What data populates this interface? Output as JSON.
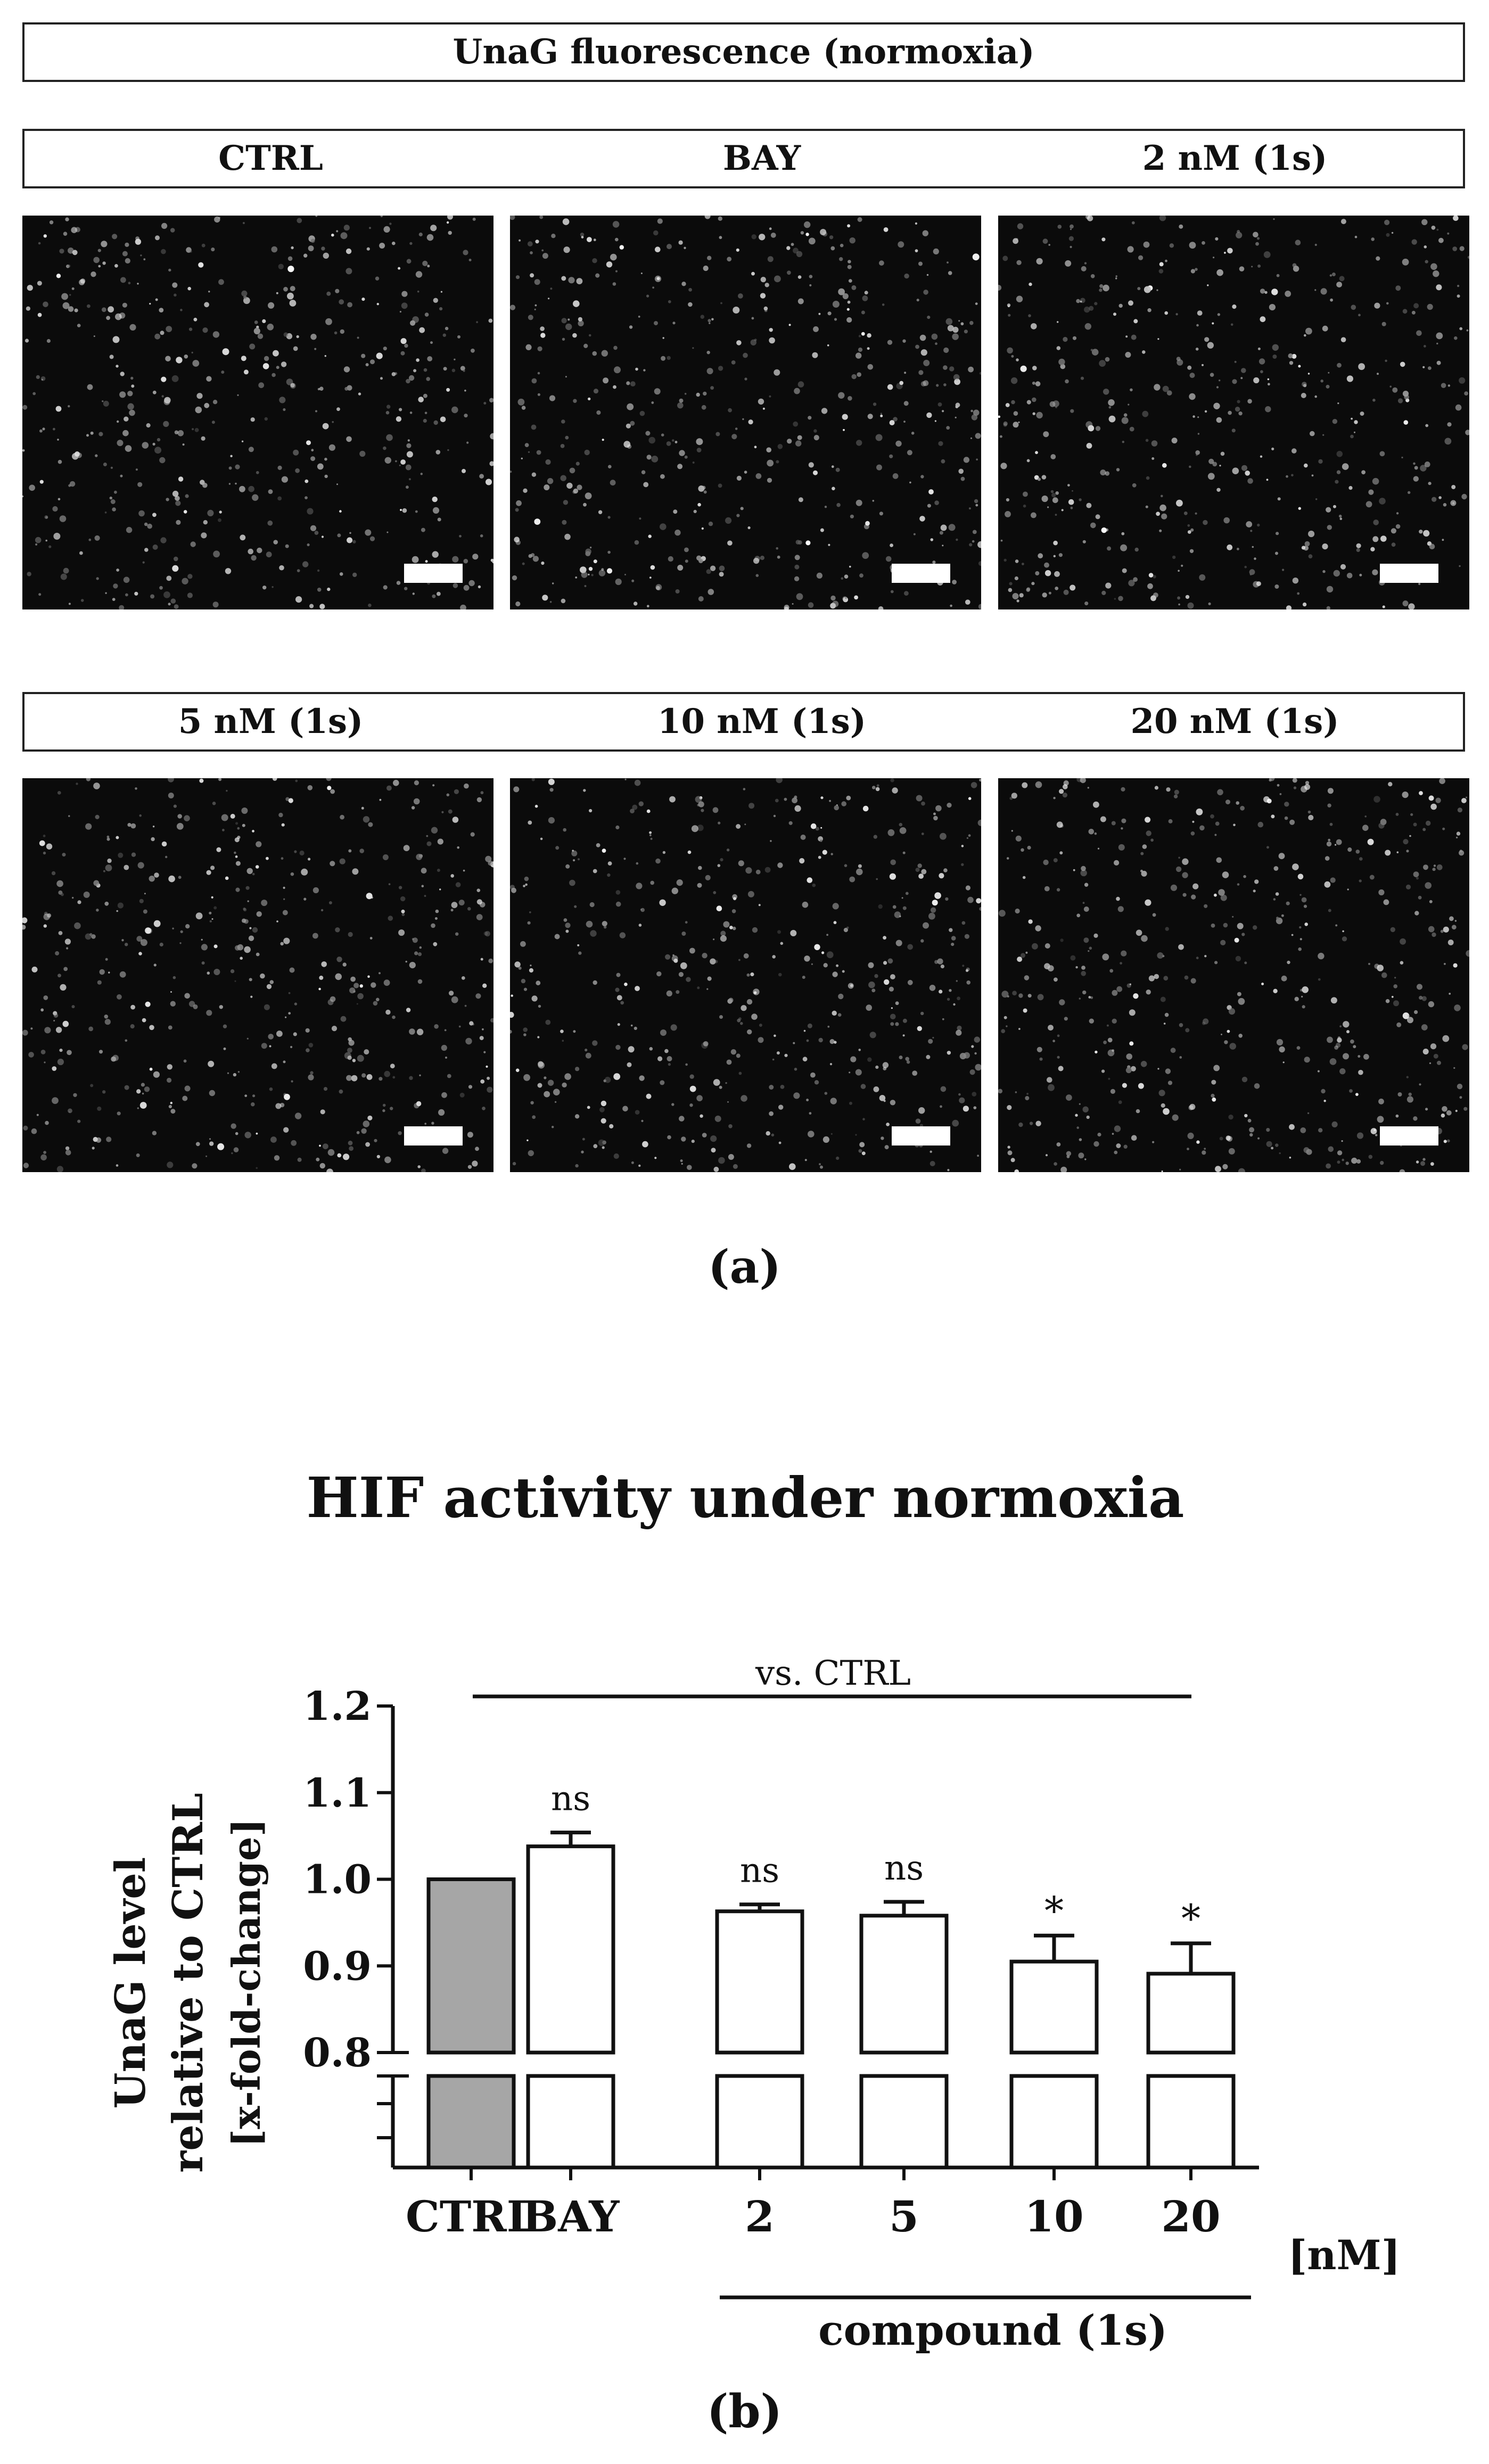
{
  "panel_a": {
    "title": "UnaG fluorescence (normoxia)",
    "row1_labels": [
      "CTRL",
      "BAY",
      "2 nM (1s)"
    ],
    "row2_labels": [
      "5 nM (1s)",
      "10 nM (1s)",
      "20 nM (1s)"
    ],
    "caption": "(a)"
  },
  "panel_b": {
    "caption": "(b)",
    "comparison_label": "vs. CTRL",
    "unit_label": "[nM]",
    "group_label": "compound (1s)"
  },
  "chart_data": {
    "type": "bar",
    "title": "HIF activity under normoxia",
    "ylabel_lines": [
      "UnaG level",
      "relative to CTRL",
      "[x-fold-change]"
    ],
    "categories": [
      "CTRL",
      "BAY",
      "2",
      "5",
      "10",
      "20"
    ],
    "values": [
      1.0,
      1.038,
      0.963,
      0.958,
      0.905,
      0.891
    ],
    "errors": [
      0.0,
      0.016,
      0.008,
      0.016,
      0.03,
      0.035
    ],
    "significance": [
      "",
      "ns",
      "ns",
      "ns",
      "*",
      "*"
    ],
    "bar_colors": [
      "#a6a6a6",
      "#ffffff",
      "#ffffff",
      "#ffffff",
      "#ffffff",
      "#ffffff"
    ],
    "ylim": [
      0.8,
      1.2
    ],
    "yticks": [
      "0.8",
      "0.9",
      "1.0",
      "1.1",
      "1.2"
    ],
    "axis_break": true
  }
}
